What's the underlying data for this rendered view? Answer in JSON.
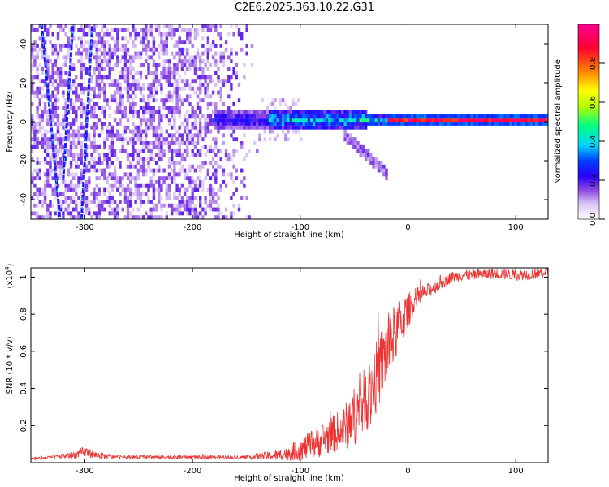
{
  "title": "C2E6.2025.363.10.22.G31",
  "chart_data": [
    {
      "type": "heatmap",
      "name": "spectrogram",
      "xlabel": "Height of straight line (km)",
      "ylabel": "Frequency (Hz)",
      "xlim": [
        -350,
        130
      ],
      "ylim": [
        -50,
        50
      ],
      "xticks": [
        -300,
        -200,
        -100,
        0,
        100
      ],
      "yticks": [
        -40,
        -20,
        0,
        20,
        40
      ],
      "colorbar": {
        "label": "Normalized spectral amplitude",
        "range": [
          0,
          1
        ],
        "ticks": [
          0.0,
          0.2,
          0.4,
          0.6,
          0.8
        ],
        "colors": [
          "#ffffff",
          "#d9c3f5",
          "#8a46e0",
          "#2a00ff",
          "#0040ff",
          "#00d7ff",
          "#00ff80",
          "#b4ff00",
          "#ffff00",
          "#ff8000",
          "#ff0033",
          "#ff0090"
        ]
      },
      "features": {
        "noise_region_x": [
          -350,
          -140
        ],
        "ridge_x": [
          -180,
          130
        ],
        "ridge_frequency": 0,
        "strong_ridge_x": [
          -20,
          130
        ],
        "blue_lines": [
          {
            "x": [
              -340,
              -323
            ],
            "y": [
              50,
              -50
            ]
          },
          {
            "x": [
              -303,
              -293
            ],
            "y": [
              -50,
              50
            ]
          },
          {
            "x": [
              -320,
              -311
            ],
            "y": [
              -30,
              50
            ]
          }
        ],
        "tail": {
          "x": [
            -60,
            -20
          ],
          "y": [
            -8,
            -28
          ]
        }
      }
    },
    {
      "type": "line",
      "name": "snr",
      "xlabel": "Height of straight line (km)",
      "ylabel": "SNR (10 * v/v)",
      "scale_label": "(x10",
      "scale_exp": "4",
      "scale_close": ")",
      "xlim": [
        -350,
        130
      ],
      "ylim": [
        0,
        1.05
      ],
      "xticks": [
        -300,
        -200,
        -100,
        0,
        100
      ],
      "yticks": [
        0.2,
        0.4,
        0.6,
        0.8,
        1.0
      ],
      "series": [
        {
          "name": "SNR",
          "color": "#ee3333",
          "x": [
            -350,
            -330,
            -310,
            -300,
            -290,
            -270,
            -250,
            -200,
            -150,
            -120,
            -100,
            -80,
            -60,
            -50,
            -40,
            -30,
            -20,
            -10,
            0,
            5,
            10,
            20,
            30,
            40,
            50,
            60,
            80,
            100,
            120,
            130
          ],
          "y": [
            0.02,
            0.03,
            0.04,
            0.06,
            0.04,
            0.03,
            0.03,
            0.03,
            0.03,
            0.04,
            0.07,
            0.12,
            0.18,
            0.25,
            0.33,
            0.45,
            0.6,
            0.72,
            0.82,
            0.86,
            0.9,
            0.93,
            0.97,
            1.0,
            1.01,
            1.01,
            1.02,
            1.01,
            1.02,
            1.03
          ],
          "noise": [
            0.01,
            0.01,
            0.02,
            0.03,
            0.02,
            0.01,
            0.01,
            0.01,
            0.01,
            0.03,
            0.06,
            0.09,
            0.12,
            0.16,
            0.18,
            0.2,
            0.2,
            0.15,
            0.1,
            0.07,
            0.05,
            0.04,
            0.04,
            0.03,
            0.03,
            0.03,
            0.03,
            0.03,
            0.03,
            0.03
          ]
        }
      ]
    }
  ]
}
